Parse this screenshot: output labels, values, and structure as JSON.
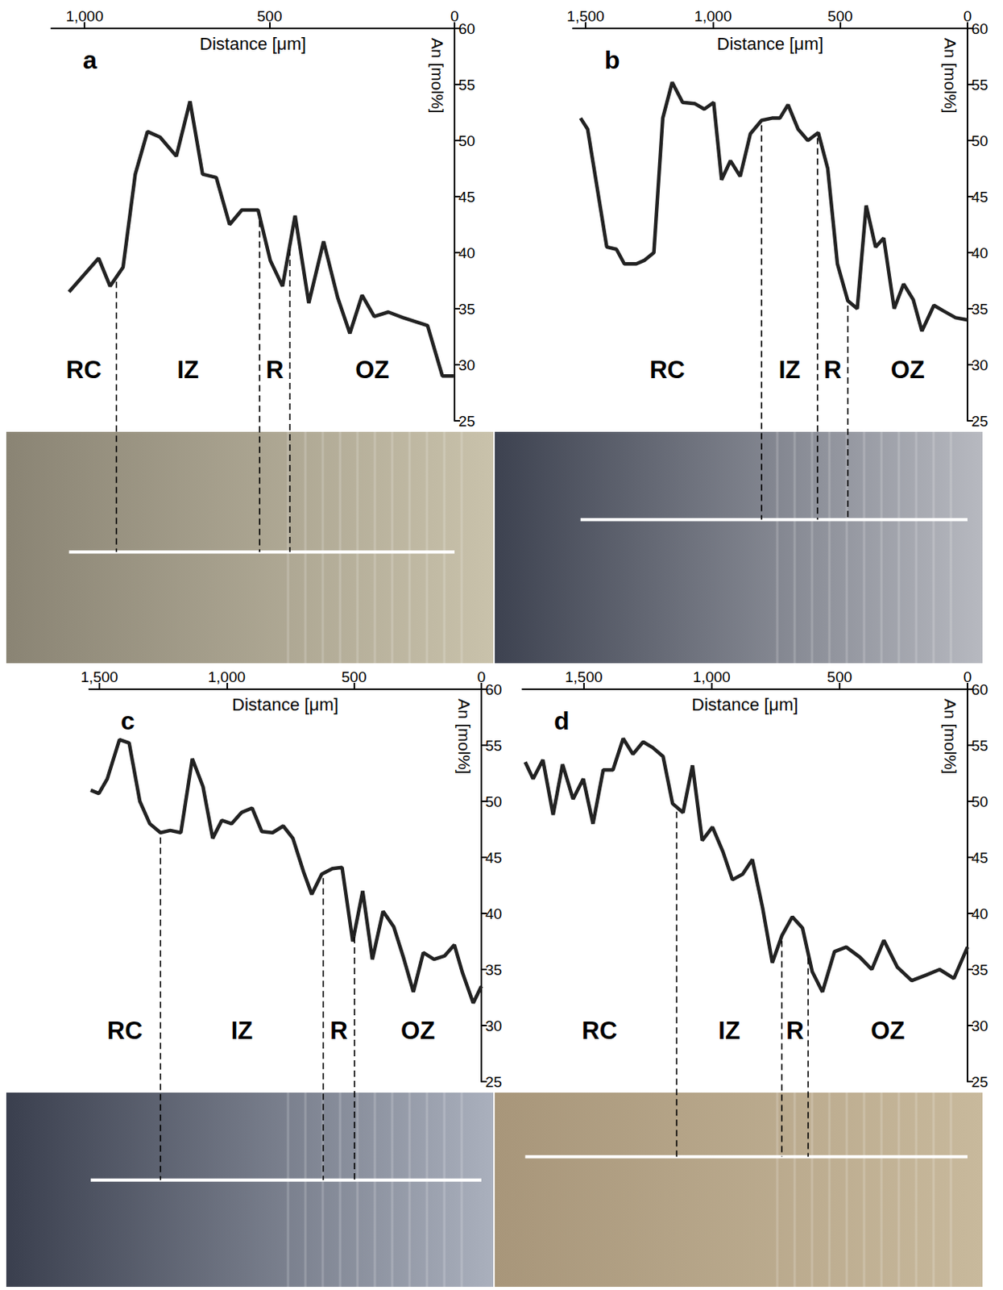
{
  "chart_data": [
    {
      "type": "line",
      "panel": "a",
      "x_label": "Distance [μm]",
      "y_label": "An [mol%]",
      "color": "#222222",
      "x": [
        1042,
        962,
        931,
        896,
        863,
        830,
        796,
        752,
        715,
        681,
        644,
        608,
        575,
        531,
        498,
        465,
        431,
        394,
        354,
        316,
        283,
        250,
        217,
        179,
        139,
        73,
        33,
        0
      ],
      "values": [
        36.5,
        39.5,
        37,
        38.7,
        47,
        50.8,
        50.3,
        48.6,
        53.5,
        47,
        46.7,
        42.5,
        43.8,
        43.8,
        39.3,
        37,
        43.3,
        35.5,
        41,
        36,
        32.8,
        36.2,
        34.3,
        34.7,
        34.2,
        33.5,
        29,
        29
      ],
      "xlim": [
        1090,
        0
      ],
      "xticks": [
        1000,
        500,
        0
      ],
      "ylim": [
        25,
        60
      ],
      "yticks": [
        25,
        30,
        35,
        40,
        45,
        50,
        55,
        60
      ],
      "zones": [
        "RC",
        "IZ",
        "R",
        "OZ"
      ],
      "zone_boundaries": [
        914,
        527,
        445
      ]
    },
    {
      "type": "line",
      "panel": "b",
      "x_label": "Distance [μm]",
      "y_label": "An [mol%]",
      "color": "#222222",
      "x": [
        1520,
        1492,
        1417,
        1379,
        1348,
        1301,
        1270,
        1232,
        1197,
        1160,
        1119,
        1072,
        1034,
        997,
        966,
        931,
        893,
        853,
        809,
        768,
        737,
        705,
        665,
        627,
        586,
        549,
        511,
        470,
        433,
        398,
        361,
        329,
        288,
        251,
        213,
        179,
        132,
        94,
        47,
        0
      ],
      "values": [
        52,
        51,
        40.5,
        40.3,
        39,
        39,
        39.3,
        40,
        52,
        55.2,
        53.4,
        53.3,
        52.8,
        53.4,
        46.5,
        48.2,
        46.8,
        50.6,
        51.8,
        52,
        52,
        53.2,
        51,
        50,
        50.7,
        47.5,
        39,
        35.7,
        35,
        44.2,
        40.5,
        41.3,
        35,
        37.2,
        35.8,
        33,
        35.3,
        34.8,
        34.2,
        34
      ],
      "xlim": [
        1550,
        0
      ],
      "xticks": [
        1500,
        1000,
        500,
        0
      ],
      "ylim": [
        25,
        60
      ],
      "yticks": [
        25,
        30,
        35,
        40,
        45,
        50,
        55,
        60
      ],
      "zones": [
        "RC",
        "IZ",
        "R",
        "OZ"
      ],
      "zone_boundaries": [
        809,
        589,
        470
      ]
    },
    {
      "type": "line",
      "panel": "c",
      "x_label": "Distance [μm]",
      "y_label": "An [mol%]",
      "color": "#222222",
      "x": [
        1534,
        1502,
        1469,
        1421,
        1383,
        1341,
        1302,
        1260,
        1222,
        1180,
        1135,
        1093,
        1055,
        1019,
        981,
        942,
        900,
        862,
        820,
        778,
        740,
        698,
        666,
        627,
        585,
        547,
        505,
        466,
        428,
        386,
        344,
        305,
        267,
        228,
        186,
        145,
        106,
        74,
        32,
        0
      ],
      "values": [
        51,
        50.7,
        52,
        55.5,
        55.2,
        50,
        48,
        47.2,
        47.4,
        47.2,
        53.8,
        51.3,
        46.7,
        48.3,
        48,
        49,
        49.4,
        47.3,
        47.2,
        47.8,
        46.7,
        43.7,
        41.7,
        43.5,
        44,
        44.1,
        37.5,
        42,
        35.9,
        40.2,
        38.8,
        36,
        33,
        36.5,
        35.9,
        36.2,
        37.2,
        34.7,
        32,
        33.5
      ],
      "xlim": [
        1540,
        0
      ],
      "xticks": [
        1500,
        1000,
        500,
        0
      ],
      "ylim": [
        25,
        60
      ],
      "yticks": [
        25,
        30,
        35,
        40,
        45,
        50,
        55,
        60
      ],
      "zones": [
        "RC",
        "IZ",
        "R",
        "OZ"
      ],
      "zone_boundaries": [
        1260,
        621,
        498
      ]
    },
    {
      "type": "line",
      "panel": "d",
      "x_label": "Distance [μm]",
      "y_label": "An [mol%]",
      "color": "#222222",
      "x": [
        1729,
        1698,
        1660,
        1620,
        1583,
        1542,
        1502,
        1464,
        1424,
        1386,
        1346,
        1308,
        1268,
        1231,
        1190,
        1153,
        1112,
        1075,
        1037,
        997,
        956,
        919,
        879,
        841,
        801,
        763,
        726,
        685,
        645,
        607,
        567,
        520,
        474,
        421,
        374,
        327,
        274,
        218,
        162,
        109,
        53,
        0
      ],
      "values": [
        53.5,
        52,
        53.7,
        48.8,
        53.3,
        50.2,
        52,
        48,
        52.8,
        52.8,
        55.6,
        54.2,
        55.3,
        54.8,
        54,
        49.8,
        49,
        53.2,
        46.5,
        47.7,
        45.5,
        43,
        43.5,
        44.8,
        40.5,
        35.6,
        38,
        39.7,
        38.7,
        34.8,
        33,
        36.6,
        37,
        36.1,
        35,
        37.6,
        35.2,
        34,
        34.5,
        35,
        34.2,
        37
      ],
      "xlim": [
        1740,
        0
      ],
      "xticks": [
        1500,
        1000,
        500,
        0
      ],
      "ylim": [
        25,
        60
      ],
      "yticks": [
        25,
        30,
        35,
        40,
        45,
        50,
        55,
        60
      ],
      "zones": [
        "RC",
        "IZ",
        "R",
        "OZ"
      ],
      "zone_boundaries": [
        1137,
        726,
        623
      ]
    }
  ]
}
